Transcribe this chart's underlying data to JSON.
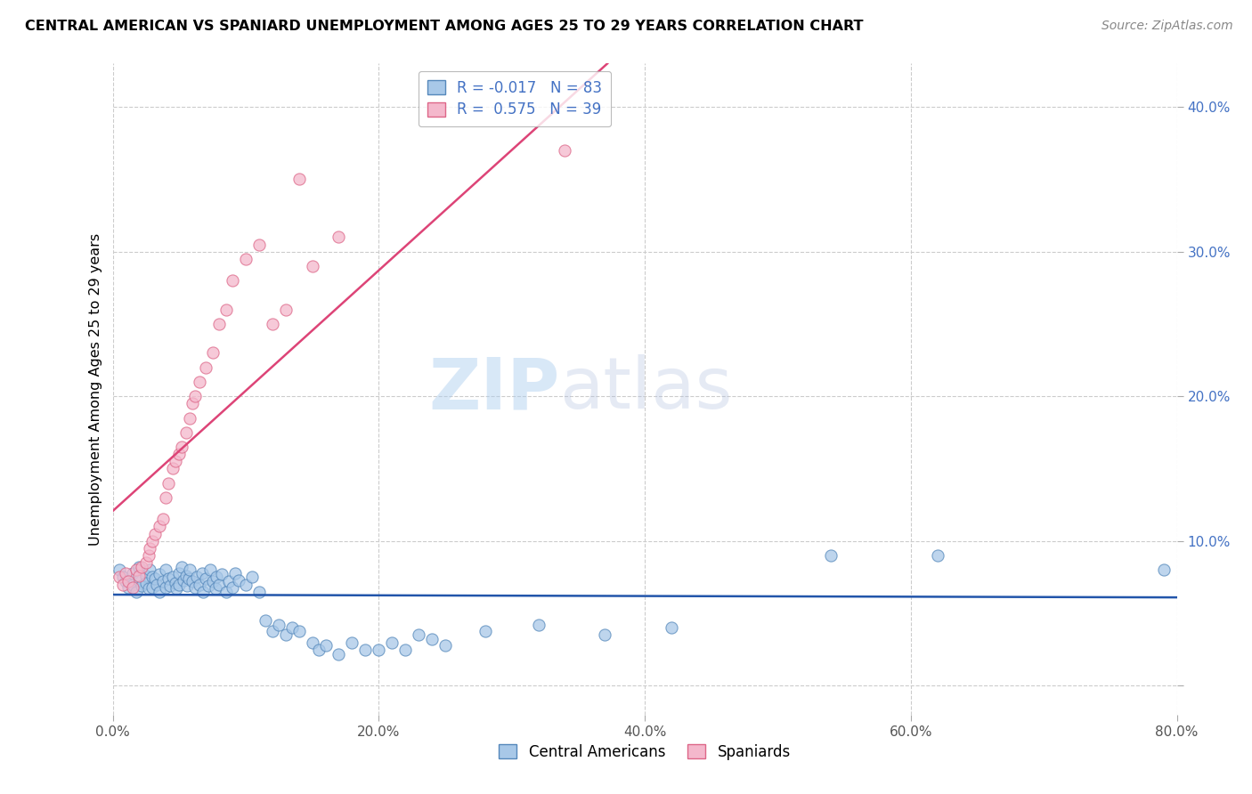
{
  "title": "CENTRAL AMERICAN VS SPANIARD UNEMPLOYMENT AMONG AGES 25 TO 29 YEARS CORRELATION CHART",
  "source": "Source: ZipAtlas.com",
  "ylabel": "Unemployment Among Ages 25 to 29 years",
  "xlim": [
    0,
    0.8
  ],
  "ylim": [
    -0.02,
    0.43
  ],
  "yticks": [
    0.0,
    0.1,
    0.2,
    0.3,
    0.4
  ],
  "ytick_labels": [
    "",
    "10.0%",
    "20.0%",
    "30.0%",
    "40.0%"
  ],
  "xticks": [
    0.0,
    0.2,
    0.4,
    0.6,
    0.8
  ],
  "xtick_labels": [
    "0.0%",
    "20.0%",
    "40.0%",
    "60.0%",
    "80.0%"
  ],
  "blue_color": "#a8c8e8",
  "pink_color": "#f4b8cc",
  "blue_edge_color": "#5588bb",
  "pink_edge_color": "#dd6688",
  "blue_line_color": "#2255aa",
  "pink_line_color": "#dd4477",
  "R_blue": -0.017,
  "N_blue": 83,
  "R_pink": 0.575,
  "N_pink": 39,
  "legend_label_blue": "Central Americans",
  "legend_label_pink": "Spaniards",
  "watermark1": "ZIP",
  "watermark2": "atlas",
  "blue_x": [
    0.005,
    0.008,
    0.01,
    0.012,
    0.015,
    0.015,
    0.018,
    0.02,
    0.02,
    0.022,
    0.025,
    0.025,
    0.027,
    0.028,
    0.03,
    0.03,
    0.032,
    0.033,
    0.035,
    0.035,
    0.038,
    0.04,
    0.04,
    0.042,
    0.043,
    0.045,
    0.047,
    0.048,
    0.05,
    0.05,
    0.052,
    0.053,
    0.055,
    0.056,
    0.057,
    0.058,
    0.06,
    0.062,
    0.063,
    0.065,
    0.067,
    0.068,
    0.07,
    0.072,
    0.073,
    0.075,
    0.077,
    0.078,
    0.08,
    0.082,
    0.085,
    0.087,
    0.09,
    0.092,
    0.095,
    0.1,
    0.105,
    0.11,
    0.115,
    0.12,
    0.125,
    0.13,
    0.135,
    0.14,
    0.15,
    0.155,
    0.16,
    0.17,
    0.18,
    0.19,
    0.2,
    0.21,
    0.22,
    0.23,
    0.24,
    0.25,
    0.28,
    0.32,
    0.37,
    0.42,
    0.54,
    0.62,
    0.79
  ],
  "blue_y": [
    0.08,
    0.075,
    0.072,
    0.068,
    0.078,
    0.07,
    0.065,
    0.082,
    0.073,
    0.069,
    0.076,
    0.071,
    0.067,
    0.08,
    0.075,
    0.068,
    0.074,
    0.07,
    0.077,
    0.065,
    0.072,
    0.08,
    0.068,
    0.074,
    0.069,
    0.075,
    0.071,
    0.067,
    0.078,
    0.07,
    0.082,
    0.073,
    0.076,
    0.069,
    0.074,
    0.08,
    0.072,
    0.068,
    0.075,
    0.07,
    0.078,
    0.065,
    0.074,
    0.069,
    0.08,
    0.072,
    0.067,
    0.075,
    0.07,
    0.077,
    0.065,
    0.072,
    0.068,
    0.078,
    0.073,
    0.07,
    0.075,
    0.065,
    0.045,
    0.038,
    0.042,
    0.035,
    0.04,
    0.038,
    0.03,
    0.025,
    0.028,
    0.022,
    0.03,
    0.025,
    0.025,
    0.03,
    0.025,
    0.035,
    0.032,
    0.028,
    0.038,
    0.042,
    0.035,
    0.04,
    0.09,
    0.09,
    0.08
  ],
  "pink_x": [
    0.005,
    0.008,
    0.01,
    0.012,
    0.015,
    0.018,
    0.02,
    0.022,
    0.025,
    0.027,
    0.028,
    0.03,
    0.032,
    0.035,
    0.038,
    0.04,
    0.042,
    0.045,
    0.047,
    0.05,
    0.052,
    0.055,
    0.058,
    0.06,
    0.062,
    0.065,
    0.07,
    0.075,
    0.08,
    0.085,
    0.09,
    0.1,
    0.11,
    0.12,
    0.13,
    0.14,
    0.15,
    0.17,
    0.34
  ],
  "pink_y": [
    0.075,
    0.07,
    0.078,
    0.072,
    0.068,
    0.08,
    0.076,
    0.082,
    0.085,
    0.09,
    0.095,
    0.1,
    0.105,
    0.11,
    0.115,
    0.13,
    0.14,
    0.15,
    0.155,
    0.16,
    0.165,
    0.175,
    0.185,
    0.195,
    0.2,
    0.21,
    0.22,
    0.23,
    0.25,
    0.26,
    0.28,
    0.295,
    0.305,
    0.25,
    0.26,
    0.35,
    0.29,
    0.31,
    0.37
  ]
}
